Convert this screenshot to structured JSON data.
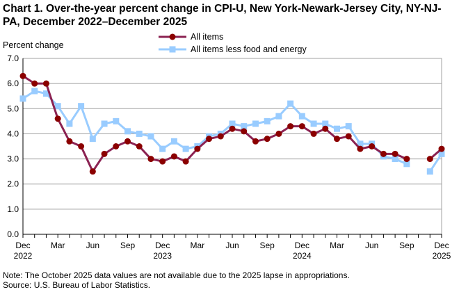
{
  "chart_data": {
    "type": "line",
    "title": "Chart 1. Over-the-year percent change in CPI-U, New York-Newark-Jersey City, NY-NJ-PA, December 2022–December 2025",
    "ylabel": "Percent change",
    "xlabel": "",
    "ylim": [
      0,
      7
    ],
    "yticks": [
      "0.0",
      "1.0",
      "2.0",
      "3.0",
      "4.0",
      "5.0",
      "6.0",
      "7.0"
    ],
    "grid": true,
    "legend_placement": "top",
    "x": [
      "Dec 2022",
      "Jan 2023",
      "Feb 2023",
      "Mar 2023",
      "Apr 2023",
      "May 2023",
      "Jun 2023",
      "Jul 2023",
      "Aug 2023",
      "Sep 2023",
      "Oct 2023",
      "Nov 2023",
      "Dec 2023",
      "Jan 2024",
      "Feb 2024",
      "Mar 2024",
      "Apr 2024",
      "May 2024",
      "Jun 2024",
      "Jul 2024",
      "Aug 2024",
      "Sep 2024",
      "Oct 2024",
      "Nov 2024",
      "Dec 2024",
      "Jan 2025",
      "Feb 2025",
      "Mar 2025",
      "Apr 2025",
      "May 2025",
      "Jun 2025",
      "Jul 2025",
      "Aug 2025",
      "Sep 2025",
      "Oct 2025",
      "Nov 2025",
      "Dec 2025"
    ],
    "xtick_labels": [
      {
        "i": 0,
        "l1": "Dec",
        "l2": "2022"
      },
      {
        "i": 3,
        "l1": "Mar",
        "l2": ""
      },
      {
        "i": 6,
        "l1": "Jun",
        "l2": ""
      },
      {
        "i": 9,
        "l1": "Sep",
        "l2": ""
      },
      {
        "i": 12,
        "l1": "Dec",
        "l2": "2023"
      },
      {
        "i": 15,
        "l1": "Mar",
        "l2": ""
      },
      {
        "i": 18,
        "l1": "Jun",
        "l2": ""
      },
      {
        "i": 21,
        "l1": "Sep",
        "l2": ""
      },
      {
        "i": 24,
        "l1": "Dec",
        "l2": "2024"
      },
      {
        "i": 27,
        "l1": "Mar",
        "l2": ""
      },
      {
        "i": 30,
        "l1": "Jun",
        "l2": ""
      },
      {
        "i": 33,
        "l1": "Sep",
        "l2": ""
      },
      {
        "i": 36,
        "l1": "Dec",
        "l2": "2025"
      }
    ],
    "series": [
      {
        "name": "All items",
        "color": "#8B2252",
        "marker_color": "#8B0000",
        "marker": "circle",
        "values": [
          6.3,
          6.0,
          6.0,
          4.6,
          3.7,
          3.5,
          2.5,
          3.2,
          3.5,
          3.7,
          3.5,
          3.0,
          2.9,
          3.1,
          2.9,
          3.4,
          3.8,
          3.9,
          4.2,
          4.1,
          3.7,
          3.8,
          4.0,
          4.3,
          4.3,
          4.0,
          4.2,
          3.8,
          3.9,
          3.4,
          3.5,
          3.2,
          3.2,
          3.0,
          null,
          3.0,
          3.4
        ]
      },
      {
        "name": "All items less food and energy",
        "color": "#99CCFF",
        "marker_color": "#99CCFF",
        "marker": "square",
        "values": [
          5.4,
          5.7,
          5.6,
          5.1,
          4.4,
          5.1,
          3.8,
          4.4,
          4.5,
          4.1,
          4.0,
          3.9,
          3.4,
          3.7,
          3.4,
          3.5,
          3.9,
          4.0,
          4.4,
          4.3,
          4.4,
          4.5,
          4.7,
          5.2,
          4.7,
          4.4,
          4.4,
          4.2,
          4.3,
          3.6,
          3.6,
          3.1,
          3.0,
          2.8,
          null,
          2.5,
          3.2
        ]
      }
    ]
  },
  "notes": {
    "note": "Note: The October 2025 data values  are not available  due to the 2025 lapse in appropriations.",
    "source": "Source: U.S. Bureau of Labor Statistics."
  }
}
